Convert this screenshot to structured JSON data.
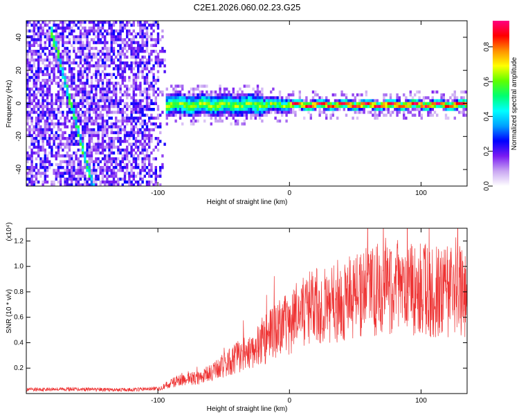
{
  "title": "C2E1.2026.060.02.23.G25",
  "colors": {
    "signal": "#ee3333",
    "frame": "#000000",
    "colormap": [
      "#ffffff",
      "#c9a6f2",
      "#7a1cf2",
      "#0000ff",
      "#00a0ff",
      "#00ffff",
      "#00ff70",
      "#60ff00",
      "#ffff00",
      "#ff9000",
      "#ff0000",
      "#ff0080"
    ]
  },
  "chart_data": [
    {
      "type": "heatmap",
      "title": "C2E1.2026.060.02.23.G25",
      "xlabel": "Height of straight line (km)",
      "ylabel": "Frequency (Hz)",
      "xlim": [
        -200,
        135
      ],
      "ylim": [
        -50,
        50
      ],
      "x_ticks": [
        -100,
        0,
        100
      ],
      "y_ticks": [
        -40,
        -20,
        0,
        20,
        40
      ],
      "colorbar": {
        "label": "Normalized spectral amplitude",
        "range": [
          0,
          0.95
        ],
        "ticks": [
          0.0,
          0.2,
          0.4,
          0.6,
          0.8
        ]
      },
      "features": {
        "noise_region_x": [
          -200,
          -95
        ],
        "track_center_hz": 0,
        "diagonal_streak": {
          "from": {
            "x": -180,
            "hz": 40
          },
          "to": {
            "x": -150,
            "hz": -50
          }
        }
      }
    },
    {
      "type": "line",
      "xlabel": "Height of straight line (km)",
      "ylabel": "SNR (10 * v/v)",
      "y_multiplier": "(x10⁴)",
      "xlim": [
        -200,
        135
      ],
      "ylim": [
        0,
        1.3
      ],
      "x_ticks": [
        -100,
        0,
        100
      ],
      "y_ticks": [
        0.2,
        0.4,
        0.6,
        0.8,
        1.0,
        1.2
      ],
      "y_tick_labels": [
        "0.2",
        "0.4",
        "0.6",
        "0.8",
        "1.0",
        "1.2"
      ],
      "series": [
        {
          "name": "SNR",
          "x": [
            -200,
            -180,
            -160,
            -140,
            -120,
            -100,
            -90,
            -80,
            -70,
            -60,
            -50,
            -40,
            -30,
            -20,
            -10,
            0,
            10,
            20,
            30,
            40,
            50,
            60,
            70,
            80,
            90,
            100,
            110,
            120,
            135
          ],
          "values": [
            0.03,
            0.035,
            0.035,
            0.03,
            0.03,
            0.04,
            0.08,
            0.12,
            0.12,
            0.16,
            0.22,
            0.28,
            0.34,
            0.4,
            0.5,
            0.56,
            0.65,
            0.68,
            0.7,
            0.74,
            0.76,
            0.8,
            0.82,
            0.84,
            0.84,
            0.82,
            0.8,
            0.8,
            0.8
          ]
        }
      ]
    }
  ]
}
